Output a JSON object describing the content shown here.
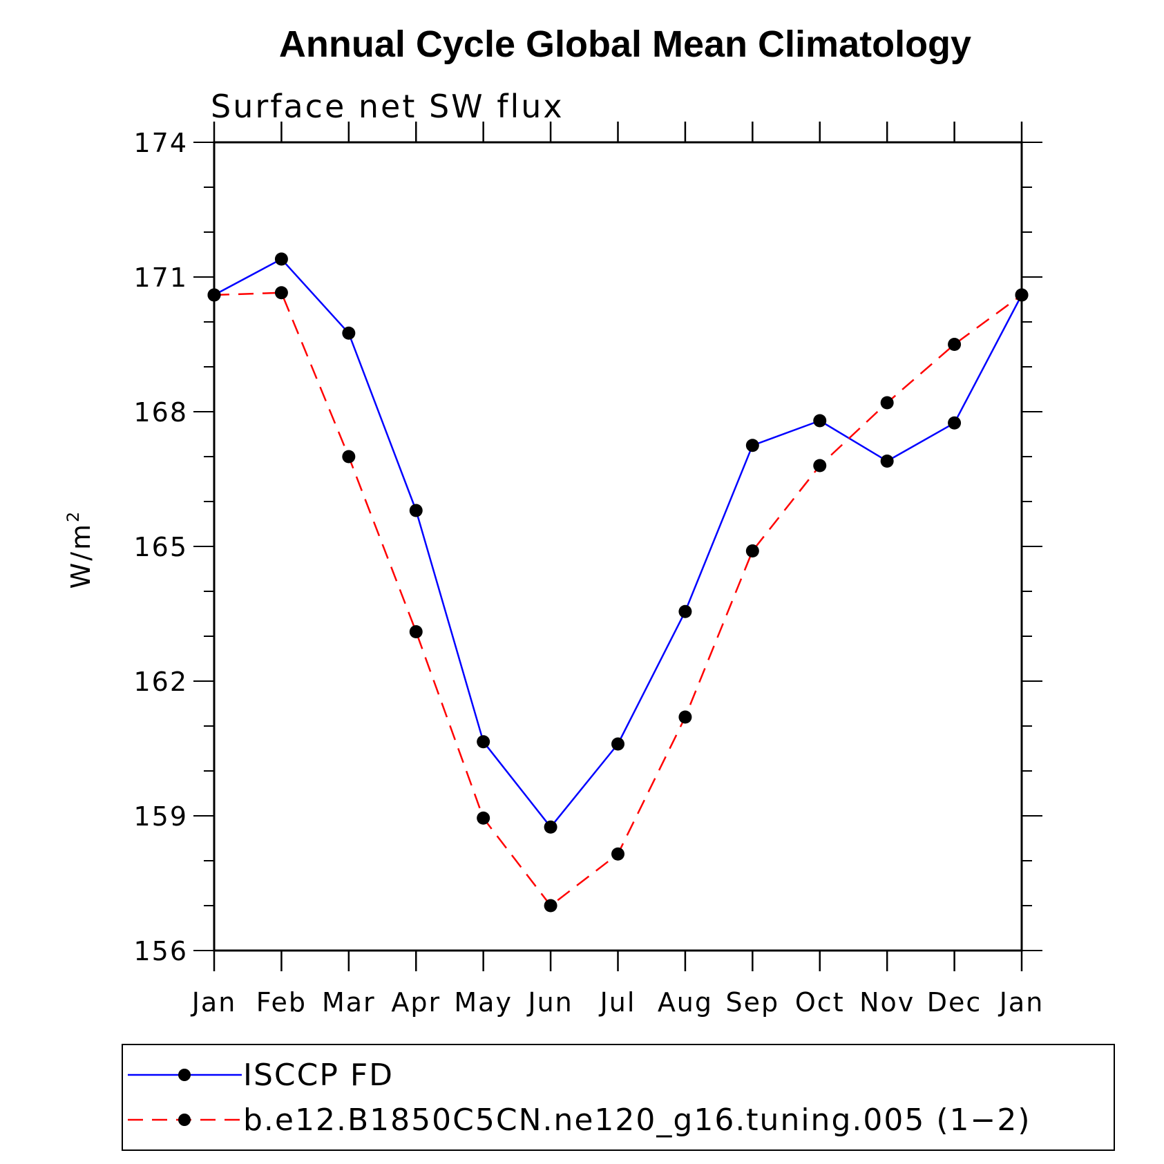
{
  "chart_data": {
    "type": "line",
    "title": "Annual Cycle Global Mean Climatology",
    "subtitle": "Surface net SW flux",
    "ylabel": "W/m",
    "ylabel_superscript": "2",
    "ylim": [
      156,
      174
    ],
    "yticks_major": [
      156,
      159,
      162,
      165,
      168,
      171,
      174
    ],
    "yticks_major_labels": [
      "156",
      "159",
      "162",
      "165",
      "168",
      "171",
      "174"
    ],
    "yminor_step": 1,
    "categories": [
      "Jan",
      "Feb",
      "Mar",
      "Apr",
      "May",
      "Jun",
      "Jul",
      "Aug",
      "Sep",
      "Oct",
      "Nov",
      "Dec",
      "Jan"
    ],
    "series": [
      {
        "name": "ISCCP FD",
        "color": "#0000ff",
        "dash": "solid",
        "values": [
          170.6,
          171.4,
          169.75,
          165.8,
          160.65,
          158.75,
          160.6,
          163.55,
          167.25,
          167.8,
          166.9,
          167.75,
          170.6
        ]
      },
      {
        "name": "b.e12.B1850C5CN.ne120_g16.tuning.005 (1−2)",
        "color": "#ff0000",
        "dash": "dashed",
        "values": [
          170.6,
          170.65,
          167.0,
          163.1,
          158.95,
          157.0,
          158.15,
          161.2,
          164.9,
          166.8,
          168.2,
          169.5,
          170.6
        ]
      }
    ],
    "legend_position": "bottom",
    "grid": false
  }
}
